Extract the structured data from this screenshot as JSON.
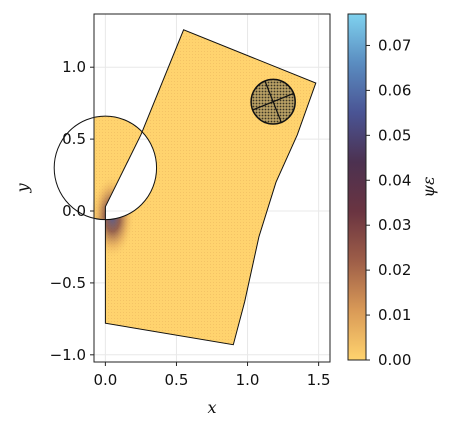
{
  "chart_data": {
    "type": "heatmap",
    "title": "",
    "xlabel": "x",
    "ylabel": "y",
    "xlim": [
      -0.08,
      1.58
    ],
    "ylim": [
      -1.05,
      1.37
    ],
    "x_ticks": [
      0.0,
      0.5,
      1.0,
      1.5
    ],
    "x_tick_labels": [
      "0.0",
      "0.5",
      "1.0",
      "1.5"
    ],
    "y_ticks": [
      -1.0,
      -0.5,
      0.0,
      0.5,
      1.0
    ],
    "y_tick_labels": [
      "−1.0",
      "−0.5",
      "0.0",
      "0.5",
      "1.0"
    ],
    "grid": true,
    "domain_outline": {
      "points": [
        [
          0.0,
          0.03
        ],
        [
          0.0,
          -0.78
        ],
        [
          0.9,
          -0.93
        ],
        [
          0.98,
          -0.63
        ],
        [
          1.08,
          -0.18
        ],
        [
          1.2,
          0.2
        ],
        [
          1.35,
          0.53
        ],
        [
          1.48,
          0.89
        ],
        [
          0.55,
          1.26
        ],
        [
          0.25,
          0.53
        ]
      ],
      "hole": {
        "center": [
          0.0,
          0.3
        ],
        "radius": 0.36
      }
    },
    "field_name": "ψε",
    "field_background_value": 0.003,
    "field_hotspot": {
      "location": "lower edge of the circular hole near (0.02, 0.0)",
      "peak_value": 0.05
    },
    "inclusion": {
      "center": [
        1.18,
        0.76
      ],
      "radius": 0.155,
      "pattern": "dotted with cross lines"
    },
    "colorbar": {
      "label": "ψε",
      "min": 0.0,
      "max": 0.077,
      "ticks": [
        0.0,
        0.01,
        0.02,
        0.03,
        0.04,
        0.05,
        0.06,
        0.07
      ],
      "tick_labels": [
        "0.00",
        "0.01",
        "0.02",
        "0.03",
        "0.04",
        "0.05",
        "0.06",
        "0.07"
      ],
      "colormap": [
        "#FFD36E",
        "#D99A57",
        "#9E5E48",
        "#6A3441",
        "#4C3150",
        "#4A5494",
        "#5A8CC0",
        "#7FD2EF"
      ]
    }
  }
}
